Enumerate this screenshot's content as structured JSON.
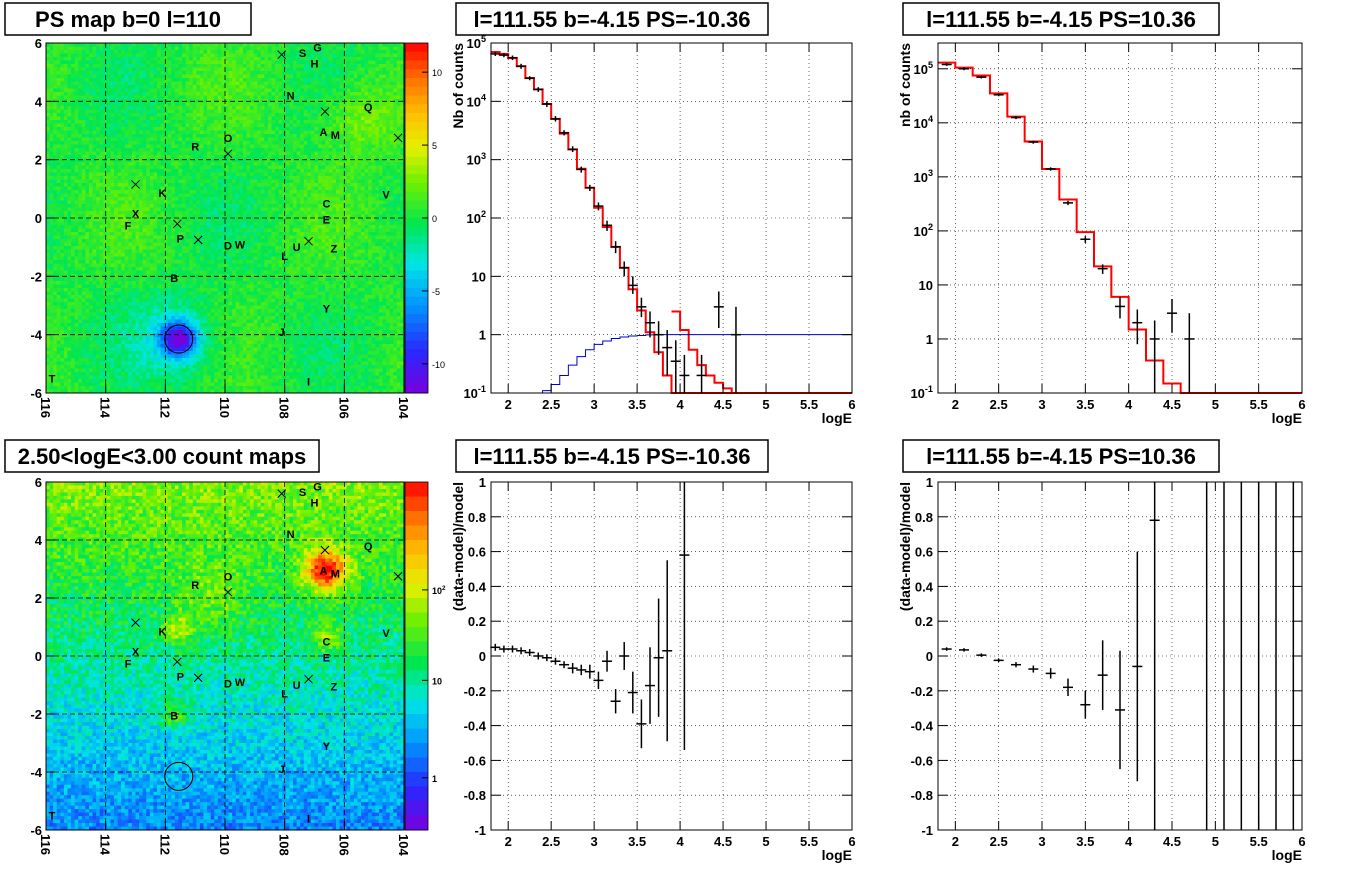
{
  "colors": {
    "frame": "#000000",
    "data": "#000000",
    "model": "#ff0000",
    "ps_component": "#0000cc",
    "grid": "#000000"
  },
  "source_labels": [
    "G",
    "S",
    "H",
    "N",
    "Q",
    "A",
    "M",
    "O",
    "R",
    "K",
    "C",
    "V",
    "X",
    "E",
    "F",
    "P",
    "D",
    "W",
    "U",
    "Z",
    "L",
    "B",
    "Y",
    "J",
    "T",
    "I"
  ],
  "chart_data": [
    {
      "type": "heatmap",
      "panel": "ps_map",
      "title": "PS map b=0 l=110",
      "xlabel": "",
      "ylabel": "",
      "xlim": [
        116,
        104
      ],
      "ylim": [
        -6,
        6
      ],
      "xticks": [
        "116",
        "114",
        "112",
        "110",
        "108",
        "106",
        "104"
      ],
      "yticks": [
        "6",
        "4",
        "2",
        "0",
        "-2",
        "-4",
        "-6"
      ],
      "colorbar_ticks": [
        "10",
        "5",
        "0",
        "-5",
        "-10"
      ],
      "colorbar_range": [
        -12,
        12
      ],
      "grid": true,
      "hotspot": {
        "l": 111.55,
        "b": -4.15,
        "value": -10.36
      },
      "sources": [
        {
          "label": "G",
          "l": 106.9,
          "b": 5.85
        },
        {
          "label": "S",
          "l": 107.4,
          "b": 5.65
        },
        {
          "label": "H",
          "l": 107.0,
          "b": 5.3
        },
        {
          "label": "N",
          "l": 107.8,
          "b": 4.2
        },
        {
          "label": "Q",
          "l": 105.2,
          "b": 3.8
        },
        {
          "label": "A",
          "l": 106.7,
          "b": 2.95
        },
        {
          "label": "M",
          "l": 106.3,
          "b": 2.85
        },
        {
          "label": "O",
          "l": 109.9,
          "b": 2.75
        },
        {
          "label": "R",
          "l": 111.0,
          "b": 2.45
        },
        {
          "label": "K",
          "l": 112.1,
          "b": 0.85
        },
        {
          "label": "C",
          "l": 106.6,
          "b": 0.5
        },
        {
          "label": "V",
          "l": 104.6,
          "b": 0.8
        },
        {
          "label": "X",
          "l": 113.0,
          "b": 0.15
        },
        {
          "label": "E",
          "l": 106.6,
          "b": -0.05
        },
        {
          "label": "F",
          "l": 113.25,
          "b": -0.25
        },
        {
          "label": "P",
          "l": 111.5,
          "b": -0.7
        },
        {
          "label": "D",
          "l": 109.9,
          "b": -0.95
        },
        {
          "label": "W",
          "l": 109.5,
          "b": -0.9
        },
        {
          "label": "U",
          "l": 107.6,
          "b": -1.0
        },
        {
          "label": "Z",
          "l": 106.35,
          "b": -1.05
        },
        {
          "label": "L",
          "l": 108.0,
          "b": -1.3
        },
        {
          "label": "B",
          "l": 111.7,
          "b": -2.05
        },
        {
          "label": "Y",
          "l": 106.6,
          "b": -3.1
        },
        {
          "label": "J",
          "l": 108.1,
          "b": -3.9
        },
        {
          "label": "T",
          "l": 115.8,
          "b": -5.5
        },
        {
          "label": "I",
          "l": 107.2,
          "b": -5.6
        }
      ],
      "crosses": [
        {
          "l": 108.1,
          "b": 5.6
        },
        {
          "l": 106.65,
          "b": 3.65
        },
        {
          "l": 104.2,
          "b": 2.75
        },
        {
          "l": 109.9,
          "b": 2.2
        },
        {
          "l": 113.0,
          "b": 1.15
        },
        {
          "l": 111.6,
          "b": -0.2
        },
        {
          "l": 110.9,
          "b": -0.75
        },
        {
          "l": 107.2,
          "b": -0.8
        }
      ]
    },
    {
      "type": "heatmap",
      "panel": "count_map",
      "title": "2.50<logE<3.00 count maps",
      "xlabel": "",
      "ylabel": "",
      "xlim": [
        116,
        104
      ],
      "ylim": [
        -6,
        6
      ],
      "xticks": [
        "116",
        "114",
        "112",
        "110",
        "108",
        "106",
        "104"
      ],
      "yticks": [
        "6",
        "4",
        "2",
        "0",
        "-2",
        "-4",
        "-6"
      ],
      "colorbar_ticks": [
        "10^2",
        "10",
        "1"
      ],
      "colorbar_log": true,
      "grid": true,
      "hotspot": {
        "l": 111.55,
        "b": -4.15
      },
      "bright_spots": [
        {
          "l": 106.6,
          "b": 2.95
        },
        {
          "l": 106.6,
          "b": 0.6
        },
        {
          "l": 111.7,
          "b": -2.05
        },
        {
          "l": 111.6,
          "b": 0.9
        }
      ]
    },
    {
      "type": "line",
      "panel": "spectrum_negative",
      "title": "l=111.55 b=-4.15 PS=-10.36",
      "xlabel": "logE",
      "ylabel": "Nb of counts",
      "xlim": [
        1.8,
        6
      ],
      "ylim": [
        0.1,
        100000
      ],
      "log_y": true,
      "xticks": [
        "2",
        "2.5",
        "3",
        "3.5",
        "4",
        "4.5",
        "5",
        "5.5",
        "6"
      ],
      "yticks": [
        "10^-1",
        "1",
        "10",
        "10^2",
        "10^3",
        "10^4",
        "10^5"
      ],
      "grid": true,
      "series": [
        {
          "kind": "model_step",
          "edges": [
            1.8,
            1.9,
            2.0,
            2.1,
            2.2,
            2.3,
            2.4,
            2.5,
            2.6,
            2.7,
            2.8,
            2.9,
            3.0,
            3.1,
            3.2,
            3.3,
            3.4,
            3.5,
            3.6,
            3.7,
            3.8,
            3.9,
            4.0,
            4.1,
            4.2,
            4.3,
            4.4,
            4.5,
            4.6,
            6.0
          ],
          "values": [
            70000,
            65000,
            55000,
            40000,
            25000,
            16000,
            9000,
            5000,
            2800,
            1500,
            700,
            330,
            150,
            70,
            32,
            14,
            6,
            2.6,
            1.1,
            0.5,
            0.2,
            0.1,
            0.1,
            0.1,
            0.1,
            0.1,
            0.1,
            0.1,
            0.1
          ]
        },
        {
          "kind": "model_step",
          "edges": [
            3.9,
            4.0,
            4.1,
            4.2,
            4.3,
            4.4,
            4.5,
            4.6,
            4.7,
            4.8,
            6.0
          ],
          "values": [
            2.5,
            1.2,
            0.55,
            0.3,
            0.2,
            0.15,
            0.12,
            0.1,
            0.1,
            0.1
          ]
        },
        {
          "kind": "ps_step",
          "edges": [
            1.8,
            2.4,
            2.5,
            2.6,
            2.7,
            2.8,
            2.9,
            3.0,
            3.1,
            3.2,
            3.3,
            3.4,
            3.5,
            3.6,
            3.7,
            3.8,
            6.0
          ],
          "values": [
            0.1,
            0.11,
            0.14,
            0.2,
            0.3,
            0.42,
            0.55,
            0.68,
            0.78,
            0.86,
            0.91,
            0.95,
            0.97,
            0.99,
            1.0,
            1.0
          ]
        },
        {
          "kind": "data",
          "x": [
            1.85,
            1.95,
            2.05,
            2.15,
            2.25,
            2.35,
            2.45,
            2.55,
            2.65,
            2.75,
            2.85,
            2.95,
            3.05,
            3.15,
            3.25,
            3.35,
            3.45,
            3.55,
            3.65,
            3.75,
            3.85,
            3.95,
            4.05,
            4.25,
            4.45,
            4.65
          ],
          "y": [
            65000,
            62000,
            56000,
            40000,
            25000,
            16000,
            9000,
            5000,
            2900,
            1500,
            680,
            330,
            160,
            75,
            32,
            14,
            7,
            3,
            1.6,
            1.0,
            0.6,
            0.35,
            0.2,
            0.2,
            3,
            1
          ],
          "ylo": [
            60000,
            57000,
            51000,
            36000,
            23000,
            14500,
            8000,
            4500,
            2600,
            1350,
            600,
            290,
            135,
            60,
            25,
            10,
            5,
            2,
            0.9,
            0.45,
            0.2,
            0.1,
            0.1,
            0.1,
            1.3,
            0.1
          ],
          "yhi": [
            70000,
            67000,
            61000,
            44000,
            27000,
            17500,
            10000,
            5600,
            3200,
            1700,
            760,
            370,
            185,
            90,
            40,
            18,
            10,
            4.3,
            2.5,
            1.7,
            1.2,
            0.8,
            0.45,
            0.45,
            5.5,
            3
          ]
        }
      ]
    },
    {
      "type": "line",
      "panel": "spectrum_positive",
      "title": "l=111.55 b=-4.15 PS=10.36",
      "xlabel": "logE",
      "ylabel": "nb of counts",
      "xlim": [
        1.8,
        6
      ],
      "ylim": [
        0.1,
        300000
      ],
      "log_y": true,
      "xticks": [
        "2",
        "2.5",
        "3",
        "3.5",
        "4",
        "4.5",
        "5",
        "5.5",
        "6"
      ],
      "yticks": [
        "10^-1",
        "1",
        "10",
        "10^2",
        "10^3",
        "10^4",
        "10^5"
      ],
      "grid": true,
      "series": [
        {
          "kind": "model_step",
          "edges": [
            1.8,
            2.0,
            2.2,
            2.4,
            2.6,
            2.8,
            3.0,
            3.2,
            3.4,
            3.6,
            3.8,
            4.0,
            4.2,
            4.4,
            4.6,
            4.8,
            6.0
          ],
          "values": [
            130000,
            105000,
            75000,
            35000,
            13000,
            4500,
            1400,
            380,
            95,
            22,
            6,
            1.5,
            0.4,
            0.15,
            0.1,
            0.1
          ]
        },
        {
          "kind": "data",
          "x": [
            1.9,
            2.1,
            2.3,
            2.5,
            2.7,
            2.9,
            3.1,
            3.3,
            3.5,
            3.7,
            3.9,
            4.1,
            4.3,
            4.5,
            4.7
          ],
          "y": [
            120000,
            100000,
            70000,
            33000,
            12500,
            4400,
            1400,
            330,
            70,
            20,
            4,
            2,
            1,
            3,
            1
          ],
          "ylo": [
            113000,
            94000,
            66000,
            31000,
            11700,
            4100,
            1300,
            300,
            60,
            16,
            2.4,
            0.8,
            0.1,
            1.3,
            0.1
          ],
          "yhi": [
            127000,
            106000,
            74000,
            35000,
            13300,
            4700,
            1500,
            360,
            80,
            24,
            6,
            3.5,
            2.2,
            5.5,
            3
          ]
        }
      ]
    },
    {
      "type": "scatter",
      "panel": "residuals_negative",
      "title": "l=111.55 b=-4.15 PS=-10.36",
      "xlabel": "logE",
      "ylabel": "(data-model)/model",
      "xlim": [
        1.8,
        6
      ],
      "ylim": [
        -1,
        1
      ],
      "xticks": [
        "2",
        "2.5",
        "3",
        "3.5",
        "4",
        "4.5",
        "5",
        "5.5",
        "6"
      ],
      "yticks": [
        "1",
        "0.8",
        "0.6",
        "0.4",
        "0.2",
        "0",
        "-0.2",
        "-0.4",
        "-0.6",
        "-0.8",
        "-1"
      ],
      "grid": true,
      "series": [
        {
          "kind": "data",
          "x": [
            1.85,
            1.95,
            2.05,
            2.15,
            2.25,
            2.35,
            2.45,
            2.55,
            2.65,
            2.75,
            2.85,
            2.95,
            3.05,
            3.15,
            3.25,
            3.35,
            3.45,
            3.55,
            3.65,
            3.75,
            3.85,
            4.05
          ],
          "y": [
            0.05,
            0.04,
            0.04,
            0.03,
            0.02,
            0.0,
            -0.01,
            -0.03,
            -0.05,
            -0.07,
            -0.08,
            -0.09,
            -0.14,
            -0.03,
            -0.26,
            0.0,
            -0.21,
            -0.39,
            -0.17,
            -0.01,
            0.03,
            0.58
          ],
          "yerr": [
            0.02,
            0.02,
            0.02,
            0.02,
            0.02,
            0.02,
            0.02,
            0.02,
            0.02,
            0.03,
            0.03,
            0.04,
            0.05,
            0.06,
            0.07,
            0.08,
            0.12,
            0.14,
            0.22,
            0.34,
            0.52,
            1.12
          ]
        }
      ]
    },
    {
      "type": "scatter",
      "panel": "residuals_positive",
      "title": "l=111.55 b=-4.15 PS=10.36",
      "xlabel": "logE",
      "ylabel": "(data-model)/model",
      "xlim": [
        1.8,
        6
      ],
      "ylim": [
        -1,
        1
      ],
      "xticks": [
        "2",
        "2.5",
        "3",
        "3.5",
        "4",
        "4.5",
        "5",
        "5.5",
        "6"
      ],
      "yticks": [
        "1",
        "0.8",
        "0.6",
        "0.4",
        "0.2",
        "0",
        "-0.2",
        "-0.4",
        "-0.6",
        "-0.8",
        "-1"
      ],
      "grid": true,
      "series": [
        {
          "kind": "data",
          "x": [
            1.9,
            2.1,
            2.3,
            2.5,
            2.7,
            2.9,
            3.1,
            3.3,
            3.5,
            3.7,
            3.9,
            4.1,
            4.3
          ],
          "y": [
            0.04,
            0.035,
            0.005,
            -0.025,
            -0.05,
            -0.075,
            -0.1,
            -0.18,
            -0.28,
            -0.11,
            -0.31,
            -0.06,
            0.78
          ],
          "yerr": [
            0.01,
            0.01,
            0.01,
            0.01,
            0.015,
            0.02,
            0.03,
            0.05,
            0.08,
            0.2,
            0.34,
            0.66,
            1.8
          ]
        },
        {
          "kind": "bars_full",
          "x": [
            4.9,
            5.1,
            5.3,
            5.5,
            5.7,
            5.9
          ]
        }
      ]
    }
  ]
}
